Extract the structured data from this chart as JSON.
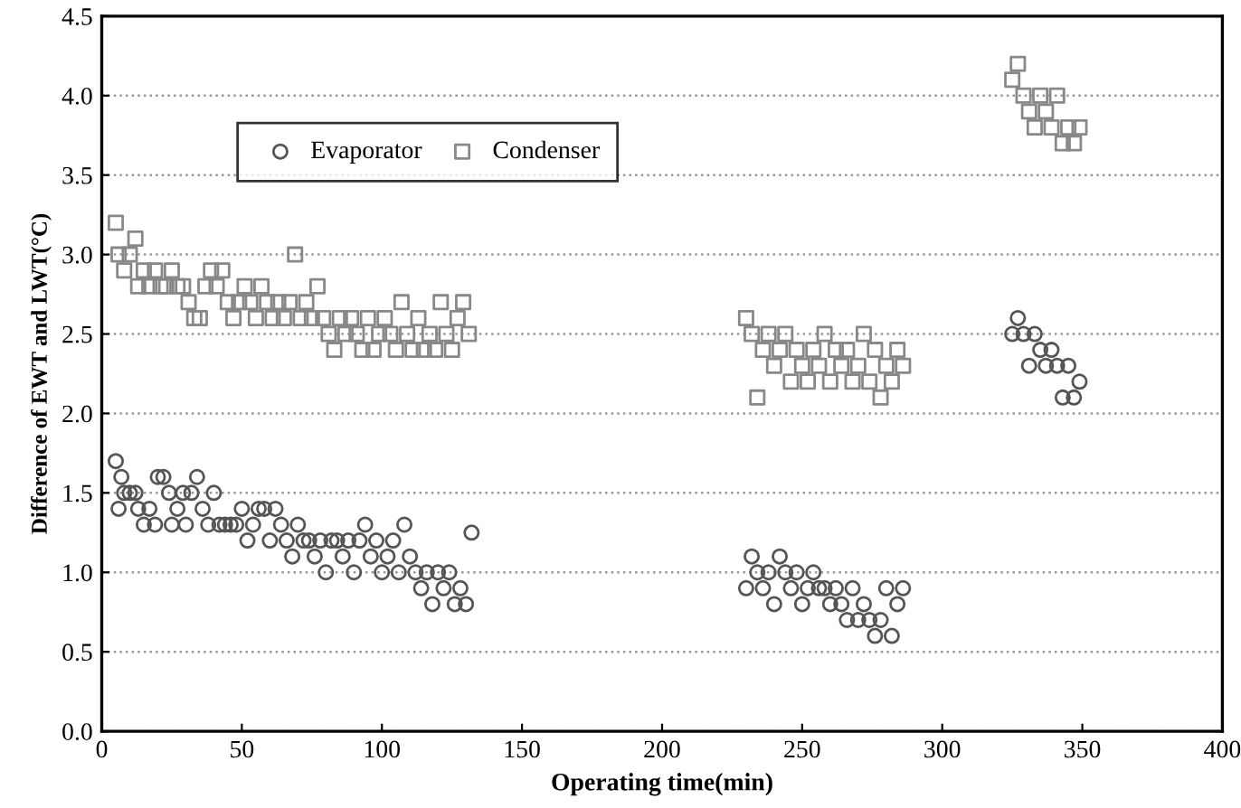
{
  "chart_data": {
    "type": "scatter",
    "xlabel": "Operating time(min)",
    "ylabel": "Difference of EWT and LWT(°C)",
    "xlim": [
      0,
      400
    ],
    "xticks": [
      0,
      50,
      100,
      150,
      200,
      250,
      300,
      350,
      400
    ],
    "ylim": [
      0,
      4.5
    ],
    "yticks": [
      {
        "value": 0,
        "label": "0.0"
      },
      {
        "value": 0.5,
        "label": "0.5"
      },
      {
        "value": 1,
        "label": "1.0"
      },
      {
        "value": 1.5,
        "label": "1.5"
      },
      {
        "value": 2,
        "label": "2.0"
      },
      {
        "value": 2.5,
        "label": "2.5"
      },
      {
        "value": 3,
        "label": "3.0"
      },
      {
        "value": 3.5,
        "label": "3.5"
      },
      {
        "value": 4,
        "label": "4.0"
      },
      {
        "value": 4.5,
        "label": "4.5"
      }
    ],
    "grid": "y",
    "legend": "top left",
    "series": [
      {
        "name": "Evaporator",
        "color": "#555555",
        "marker": "circle",
        "x": [
          5,
          6,
          7,
          8,
          10,
          12,
          13,
          15,
          17,
          19,
          20,
          22,
          24,
          25,
          27,
          29,
          30,
          32,
          34,
          36,
          38,
          40,
          42,
          44,
          46,
          48,
          50,
          52,
          54,
          56,
          58,
          60,
          62,
          64,
          66,
          68,
          70,
          72,
          74,
          76,
          78,
          80,
          82,
          84,
          86,
          88,
          90,
          92,
          94,
          96,
          98,
          100,
          102,
          104,
          106,
          108,
          110,
          112,
          114,
          116,
          118,
          120,
          122,
          124,
          126,
          128,
          130,
          132,
          230,
          232,
          234,
          236,
          238,
          240,
          242,
          244,
          246,
          248,
          250,
          252,
          254,
          256,
          258,
          260,
          262,
          264,
          266,
          268,
          270,
          272,
          274,
          276,
          278,
          280,
          282,
          284,
          286,
          325,
          327,
          329,
          331,
          333,
          335,
          337,
          339,
          341,
          343,
          345,
          347,
          349
        ],
        "values": [
          1.7,
          1.4,
          1.6,
          1.5,
          1.5,
          1.5,
          1.4,
          1.3,
          1.4,
          1.3,
          1.6,
          1.6,
          1.5,
          1.3,
          1.4,
          1.5,
          1.3,
          1.5,
          1.6,
          1.4,
          1.3,
          1.5,
          1.3,
          1.3,
          1.3,
          1.3,
          1.4,
          1.2,
          1.3,
          1.4,
          1.4,
          1.2,
          1.4,
          1.3,
          1.2,
          1.1,
          1.3,
          1.2,
          1.2,
          1.1,
          1.2,
          1.0,
          1.2,
          1.2,
          1.1,
          1.2,
          1.0,
          1.2,
          1.3,
          1.1,
          1.2,
          1.0,
          1.1,
          1.2,
          1.0,
          1.3,
          1.1,
          1.0,
          0.9,
          1.0,
          0.8,
          1.0,
          0.9,
          1.0,
          0.8,
          0.9,
          0.8,
          1.25,
          0.9,
          1.1,
          1.0,
          0.9,
          1.0,
          0.8,
          1.1,
          1.0,
          0.9,
          1.0,
          0.8,
          0.9,
          1.0,
          0.9,
          0.9,
          0.8,
          0.9,
          0.8,
          0.7,
          0.9,
          0.7,
          0.8,
          0.7,
          0.6,
          0.7,
          0.9,
          0.6,
          0.8,
          0.9,
          2.5,
          2.6,
          2.5,
          2.3,
          2.5,
          2.4,
          2.3,
          2.4,
          2.3,
          2.1,
          2.3,
          2.1,
          2.2
        ]
      },
      {
        "name": "Condenser",
        "color": "#888888",
        "marker": "square",
        "x": [
          5,
          6,
          8,
          10,
          12,
          13,
          15,
          17,
          19,
          21,
          23,
          25,
          27,
          29,
          31,
          33,
          35,
          37,
          39,
          41,
          43,
          45,
          47,
          49,
          51,
          53,
          55,
          57,
          59,
          61,
          63,
          65,
          67,
          69,
          71,
          73,
          75,
          77,
          79,
          81,
          83,
          85,
          87,
          89,
          91,
          93,
          95,
          97,
          99,
          101,
          103,
          105,
          107,
          109,
          111,
          113,
          115,
          117,
          119,
          121,
          123,
          125,
          127,
          129,
          131,
          230,
          232,
          234,
          236,
          238,
          240,
          242,
          244,
          246,
          248,
          250,
          252,
          254,
          256,
          258,
          260,
          262,
          264,
          266,
          268,
          270,
          272,
          274,
          276,
          278,
          280,
          282,
          284,
          286,
          325,
          327,
          329,
          331,
          333,
          335,
          337,
          339,
          341,
          343,
          345,
          347,
          349
        ],
        "values": [
          3.2,
          3.0,
          2.9,
          3.0,
          3.1,
          2.8,
          2.9,
          2.8,
          2.9,
          2.8,
          2.8,
          2.9,
          2.8,
          2.8,
          2.7,
          2.6,
          2.6,
          2.8,
          2.9,
          2.8,
          2.9,
          2.7,
          2.6,
          2.7,
          2.8,
          2.7,
          2.6,
          2.8,
          2.7,
          2.6,
          2.7,
          2.6,
          2.7,
          3.0,
          2.6,
          2.7,
          2.6,
          2.8,
          2.6,
          2.5,
          2.4,
          2.6,
          2.5,
          2.6,
          2.5,
          2.4,
          2.6,
          2.4,
          2.5,
          2.6,
          2.5,
          2.4,
          2.7,
          2.5,
          2.4,
          2.6,
          2.4,
          2.5,
          2.4,
          2.7,
          2.5,
          2.4,
          2.6,
          2.7,
          2.5,
          2.6,
          2.5,
          2.1,
          2.4,
          2.5,
          2.3,
          2.4,
          2.5,
          2.2,
          2.4,
          2.3,
          2.2,
          2.4,
          2.3,
          2.5,
          2.2,
          2.4,
          2.3,
          2.4,
          2.2,
          2.3,
          2.5,
          2.2,
          2.4,
          2.1,
          2.3,
          2.2,
          2.4,
          2.3,
          4.1,
          4.2,
          4.0,
          3.9,
          3.8,
          4.0,
          3.9,
          3.8,
          4.0,
          3.7,
          3.8,
          3.7,
          3.8
        ]
      }
    ]
  }
}
